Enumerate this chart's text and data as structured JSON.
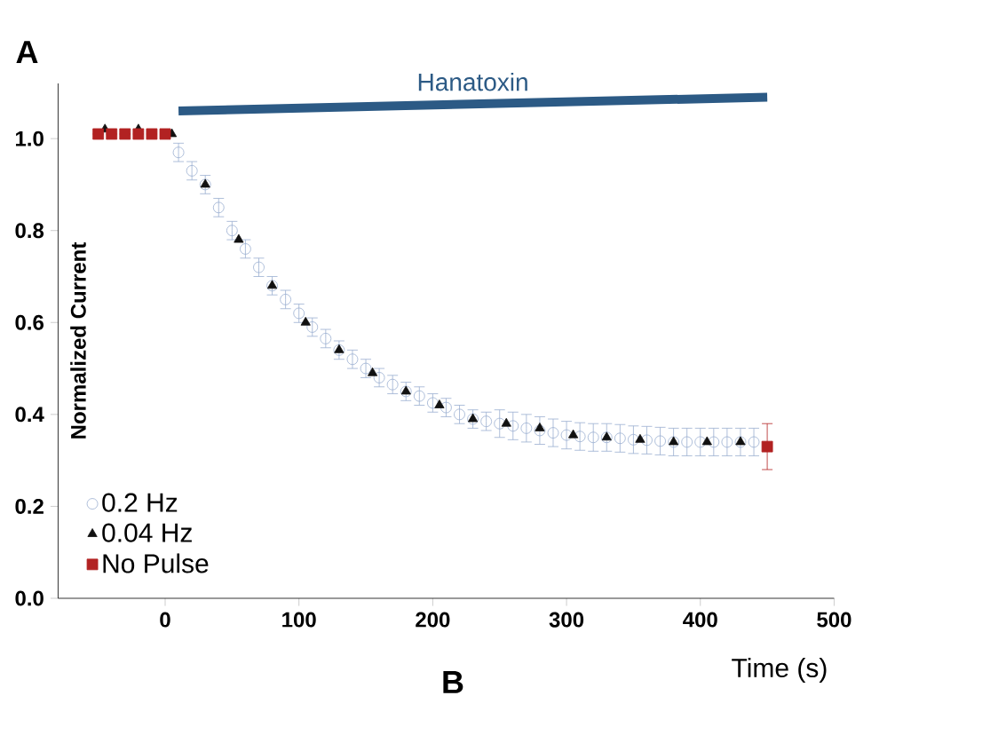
{
  "chart_data": {
    "type": "scatter",
    "xlabel": "Time (s)",
    "ylabel": "Normalized Current",
    "annotations": [
      "A",
      "B"
    ],
    "xlim": [
      -80,
      500
    ],
    "xticks": [
      0,
      100,
      200,
      300,
      400,
      500
    ],
    "ylim": [
      0,
      1.12
    ],
    "yticks": [
      {
        "value": 0,
        "label": "0.0"
      },
      0.2,
      0.4,
      0.6,
      0.8,
      {
        "value": 1,
        "label": "1.0"
      }
    ],
    "legend": "bottom left",
    "grid": false,
    "series": [
      {
        "name": "0.2 Hz",
        "color": "#9aaed0",
        "marker": "circle",
        "x": [
          10,
          20,
          30,
          40,
          50,
          60,
          70,
          80,
          90,
          100,
          110,
          120,
          130,
          140,
          150,
          160,
          170,
          180,
          190,
          200,
          210,
          220,
          230,
          240,
          250,
          260,
          270,
          280,
          290,
          300,
          310,
          320,
          330,
          340,
          350,
          360,
          370,
          380,
          390,
          400,
          410,
          420,
          430,
          440
        ],
        "values": [
          0.97,
          0.93,
          0.9,
          0.85,
          0.8,
          0.76,
          0.72,
          0.68,
          0.65,
          0.62,
          0.59,
          0.565,
          0.54,
          0.52,
          0.5,
          0.48,
          0.465,
          0.45,
          0.44,
          0.425,
          0.415,
          0.4,
          0.39,
          0.385,
          0.38,
          0.375,
          0.37,
          0.365,
          0.36,
          0.355,
          0.352,
          0.35,
          0.35,
          0.348,
          0.345,
          0.344,
          0.342,
          0.34,
          0.34,
          0.34,
          0.34,
          0.34,
          0.34,
          0.34
        ],
        "errors": [
          0.02,
          0.02,
          0.02,
          0.02,
          0.02,
          0.02,
          0.02,
          0.02,
          0.02,
          0.02,
          0.02,
          0.02,
          0.02,
          0.02,
          0.02,
          0.02,
          0.02,
          0.02,
          0.02,
          0.02,
          0.02,
          0.02,
          0.02,
          0.02,
          0.03,
          0.03,
          0.03,
          0.03,
          0.03,
          0.03,
          0.03,
          0.03,
          0.03,
          0.03,
          0.03,
          0.03,
          0.03,
          0.03,
          0.03,
          0.03,
          0.03,
          0.03,
          0.03,
          0.03
        ]
      },
      {
        "name": "0.04 Hz",
        "color": "#111111",
        "marker": "triangle",
        "x": [
          -45,
          -20,
          5,
          30,
          55,
          80,
          105,
          130,
          155,
          180,
          205,
          230,
          255,
          280,
          305,
          330,
          355,
          380,
          405,
          430
        ],
        "values": [
          1.02,
          1.02,
          1.01,
          0.9,
          0.78,
          0.68,
          0.6,
          0.54,
          0.49,
          0.45,
          0.42,
          0.39,
          0.38,
          0.37,
          0.355,
          0.35,
          0.345,
          0.34,
          0.34,
          0.34
        ]
      },
      {
        "name": "No Pulse",
        "color": "#b22222",
        "marker": "square",
        "x": [
          -50,
          -40,
          -30,
          -20,
          -10,
          0,
          450
        ],
        "values": [
          1.01,
          1.01,
          1.01,
          1.01,
          1.01,
          1.01,
          0.33
        ],
        "errors": [
          null,
          null,
          null,
          null,
          null,
          null,
          0.05
        ]
      },
      {
        "name": "Hanatoxin",
        "type": "line",
        "color": "#2c5a85",
        "marker": "none",
        "x": [
          10,
          450
        ],
        "values": [
          1.06,
          1.09
        ]
      }
    ]
  }
}
